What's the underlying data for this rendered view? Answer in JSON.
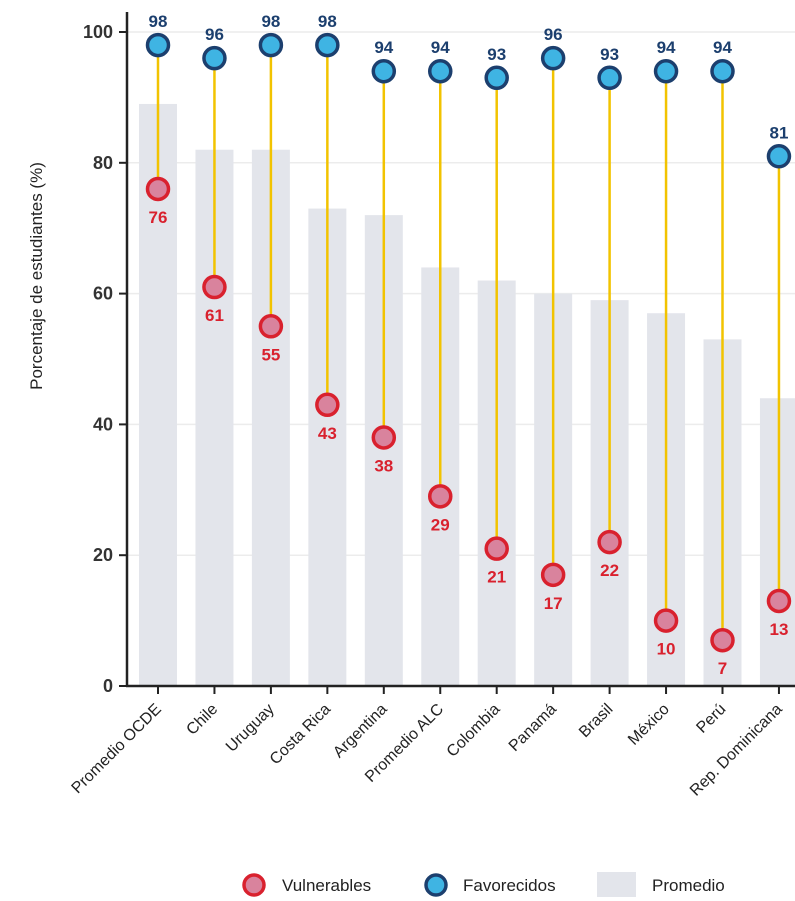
{
  "chart_data": {
    "type": "dot-range-with-bars",
    "ylabel": "Porcentaje de estudiantes (%)",
    "ylim": [
      0,
      100
    ],
    "yticks": [
      0,
      20,
      40,
      60,
      80,
      100
    ],
    "grid": true,
    "legend_position": "bottom",
    "categories": [
      "Promedio OCDE",
      "Chile",
      "Uruguay",
      "Costa Rica",
      "Argentina",
      "Promedio ALC",
      "Colombia",
      "Panamá",
      "Brasil",
      "México",
      "Perú",
      "Rep. Dominicana"
    ],
    "series": [
      {
        "name": "Vulnerables",
        "values": [
          76,
          61,
          55,
          43,
          38,
          29,
          21,
          17,
          22,
          10,
          7,
          13
        ],
        "color": "#d9212e",
        "fill": "#d9839d"
      },
      {
        "name": "Favorecidos",
        "values": [
          98,
          96,
          98,
          98,
          94,
          94,
          93,
          96,
          93,
          94,
          94,
          81
        ],
        "color": "#1c3f6e",
        "fill": "#3fb4e3"
      },
      {
        "name": "Promedio",
        "values": [
          89,
          82,
          82,
          73,
          72,
          64,
          62,
          60,
          59,
          57,
          53,
          44
        ],
        "color": "#e3e5eb"
      }
    ],
    "connector_color": "#f2c300"
  }
}
